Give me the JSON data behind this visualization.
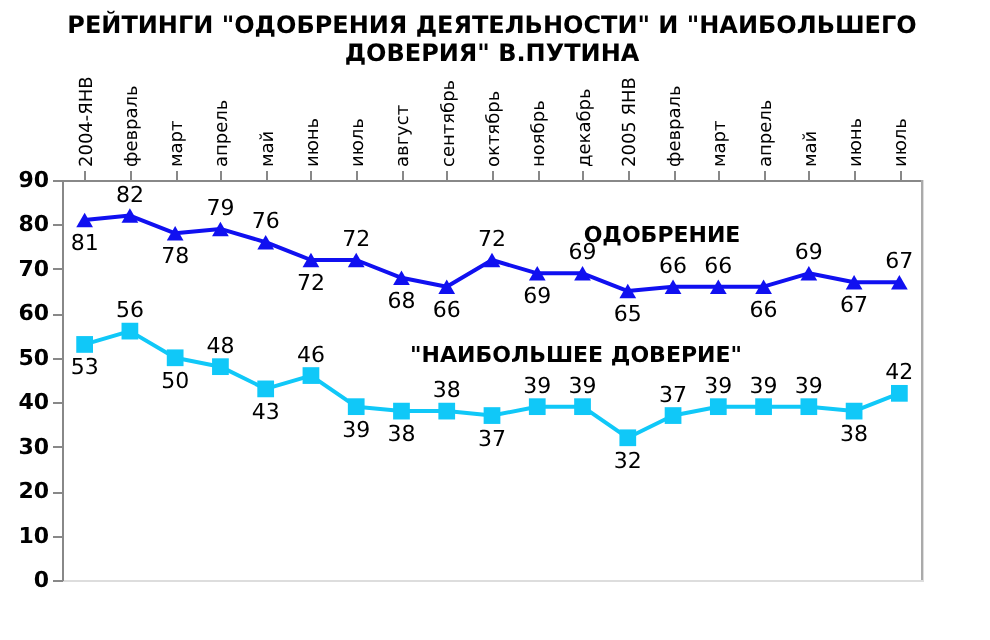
{
  "chart_data": {
    "type": "line",
    "title": "РЕЙТИНГИ \"ОДОБРЕНИЯ ДЕЯТЕЛЬНОСТИ\" И \"НАИБОЛЬШЕГО ДОВЕРИЯ\" В.ПУТИНА",
    "categories": [
      "2004-ЯНВ",
      "февраль",
      "март",
      "апрель",
      "май",
      "июнь",
      "июль",
      "август",
      "сентябрь",
      "октябрь",
      "ноябрь",
      "декабрь",
      "2005 ЯНВ",
      "февраль",
      "март",
      "апрель",
      "май",
      "июнь",
      "июль"
    ],
    "series": [
      {
        "name": "ОДОБРЕНИЕ",
        "color": "#1010f0",
        "marker": "triangle",
        "values": [
          81,
          82,
          78,
          79,
          76,
          72,
          72,
          68,
          66,
          72,
          69,
          69,
          65,
          66,
          66,
          66,
          69,
          67,
          67
        ]
      },
      {
        "name": "\"НАИБОЛЬШЕЕ ДОВЕРИЕ\"",
        "color": "#10c8f8",
        "marker": "square",
        "values": [
          53,
          56,
          50,
          48,
          43,
          46,
          39,
          38,
          38,
          37,
          39,
          39,
          32,
          37,
          39,
          39,
          39,
          38,
          42
        ]
      }
    ],
    "ylim": [
      0,
      90
    ],
    "yticks": [
      0,
      10,
      20,
      30,
      40,
      50,
      60,
      70,
      80,
      90
    ],
    "grid": false,
    "data_labels": true
  }
}
